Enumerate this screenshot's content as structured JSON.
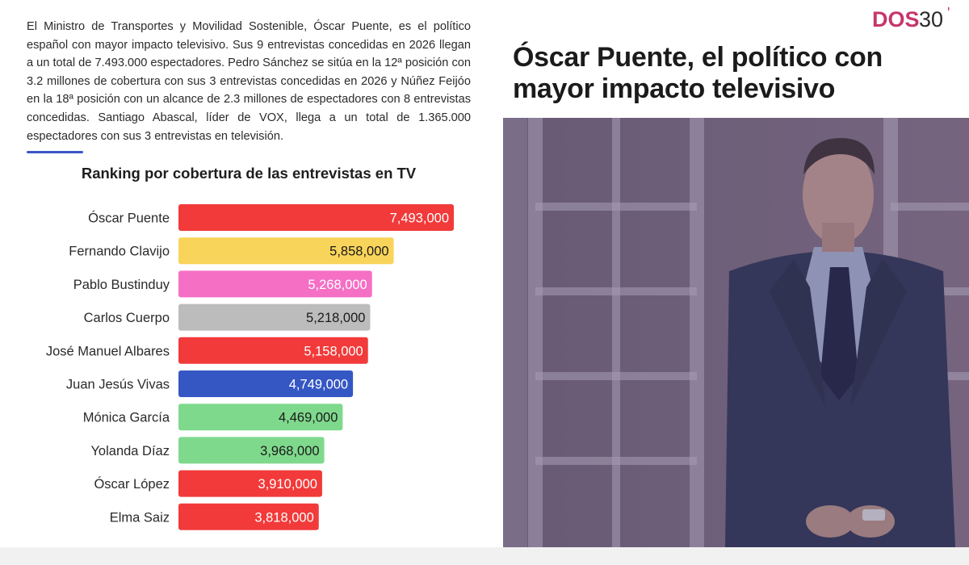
{
  "brand": {
    "logo_text_1": "DOS",
    "logo_text_2": "30",
    "logo_mark": "'"
  },
  "intro_text": "El Ministro de Transportes y Movilidad Sostenible, Óscar Puente, es el político español con mayor impacto televisivo. Sus 9 entrevistas concedidas en 2026 llegan a un total de 7.493.000 espectadores. Pedro Sánchez se sitúa en la 12ª posición con 3.2 millones de cobertura con sus 3 entrevistas concedidas en 2026 y Núñez Feijóo en la 18ª posición con un alcance de 2.3 millones de espectadores con 8 entrevistas concedidas. Santiago Abascal, líder de VOX, llega a un total de 1.365.000 espectadores con sus 3 entrevistas en televisión.",
  "headline": "Óscar Puente, el político con mayor impacto televisivo",
  "colors": {
    "accent": "#3a56c8",
    "brand_pink": "#c7356b",
    "photo_tint": "#5b4f78"
  },
  "chart_data": {
    "type": "bar",
    "orientation": "horizontal",
    "title": "Ranking por cobertura de las entrevistas en TV",
    "xlabel": "",
    "ylabel": "",
    "xlim": [
      0,
      7493000
    ],
    "categories": [
      "Óscar Puente",
      "Fernando Clavijo",
      "Pablo Bustinduy",
      "Carlos Cuerpo",
      "José Manuel Albares",
      "Juan Jesús Vivas",
      "Mónica García",
      "Yolanda Díaz",
      "Óscar López",
      "Elma Saiz"
    ],
    "values": [
      7493000,
      5858000,
      5268000,
      5218000,
      5158000,
      4749000,
      4469000,
      3968000,
      3910000,
      3818000
    ],
    "labels": [
      "7,493,000",
      "5,858,000",
      "5,268,000",
      "5,218,000",
      "5,158,000",
      "4,749,000",
      "4,469,000",
      "3,968,000",
      "3,910,000",
      "3,818,000"
    ],
    "bar_colors": [
      "#f23a3a",
      "#f9d45a",
      "#f56fc5",
      "#bcbcbc",
      "#f23a3a",
      "#3557c4",
      "#7fd98c",
      "#7fd98c",
      "#f23a3a",
      "#f23a3a"
    ],
    "label_colors": [
      "#ffffff",
      "#1a1a1a",
      "#ffffff",
      "#1a1a1a",
      "#ffffff",
      "#ffffff",
      "#1a1a1a",
      "#1a1a1a",
      "#ffffff",
      "#ffffff"
    ],
    "grid": false,
    "legend": "none"
  }
}
